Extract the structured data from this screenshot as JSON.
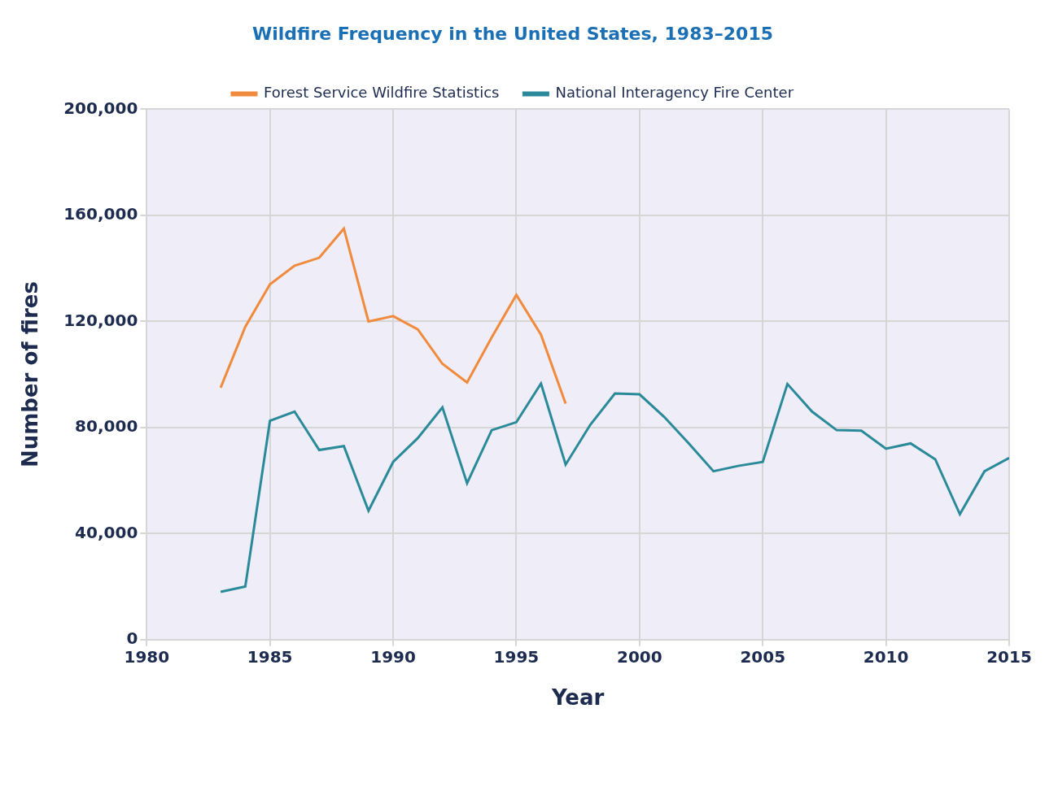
{
  "chart_data": {
    "type": "line",
    "title": "Wildfire Frequency in the United States, 1983–2015",
    "x_label": "Year",
    "y_label": "Number of fires",
    "x": [
      1983,
      1984,
      1985,
      1986,
      1987,
      1988,
      1989,
      1990,
      1991,
      1992,
      1993,
      1994,
      1995,
      1996,
      1997,
      1998,
      1999,
      2000,
      2001,
      2002,
      2003,
      2004,
      2005,
      2006,
      2007,
      2008,
      2009,
      2010,
      2011,
      2012,
      2013,
      2014,
      2015
    ],
    "series": [
      {
        "name": "Forest Service Wildfire Statistics",
        "color": "#f08a3c",
        "values": [
          95000,
          118000,
          134000,
          141000,
          144000,
          155000,
          120000,
          122000,
          117000,
          104000,
          97000,
          114000,
          130000,
          115000,
          89000,
          null,
          null,
          null,
          null,
          null,
          null,
          null,
          null,
          null,
          null,
          null,
          null,
          null,
          null,
          null,
          null,
          null,
          null
        ]
      },
      {
        "name": "National Interagency Fire Center",
        "color": "#2a8a99",
        "values": [
          18000,
          20000,
          82500,
          86000,
          71500,
          73000,
          48600,
          67000,
          76000,
          87600,
          59000,
          79000,
          82000,
          96600,
          66000,
          81000,
          92800,
          92500,
          84000,
          74000,
          63500,
          65500,
          67000,
          96400,
          86000,
          79000,
          78800,
          72000,
          74000,
          68000,
          47300,
          63500,
          68500
        ]
      }
    ],
    "xlim": [
      1980,
      2015
    ],
    "xticks": [
      1980,
      1985,
      1990,
      1995,
      2000,
      2005,
      2010,
      2015
    ],
    "ylim": [
      0,
      200000
    ],
    "yticks": [
      0,
      {
        "value": 40000,
        "label": "40,000"
      },
      {
        "value": 80000,
        "label": "80,000"
      },
      {
        "value": 120000,
        "label": "120,000"
      },
      {
        "value": 160000,
        "label": "160,000"
      },
      {
        "value": 200000,
        "label": "200,000"
      }
    ],
    "grid": true,
    "legend": "top"
  }
}
